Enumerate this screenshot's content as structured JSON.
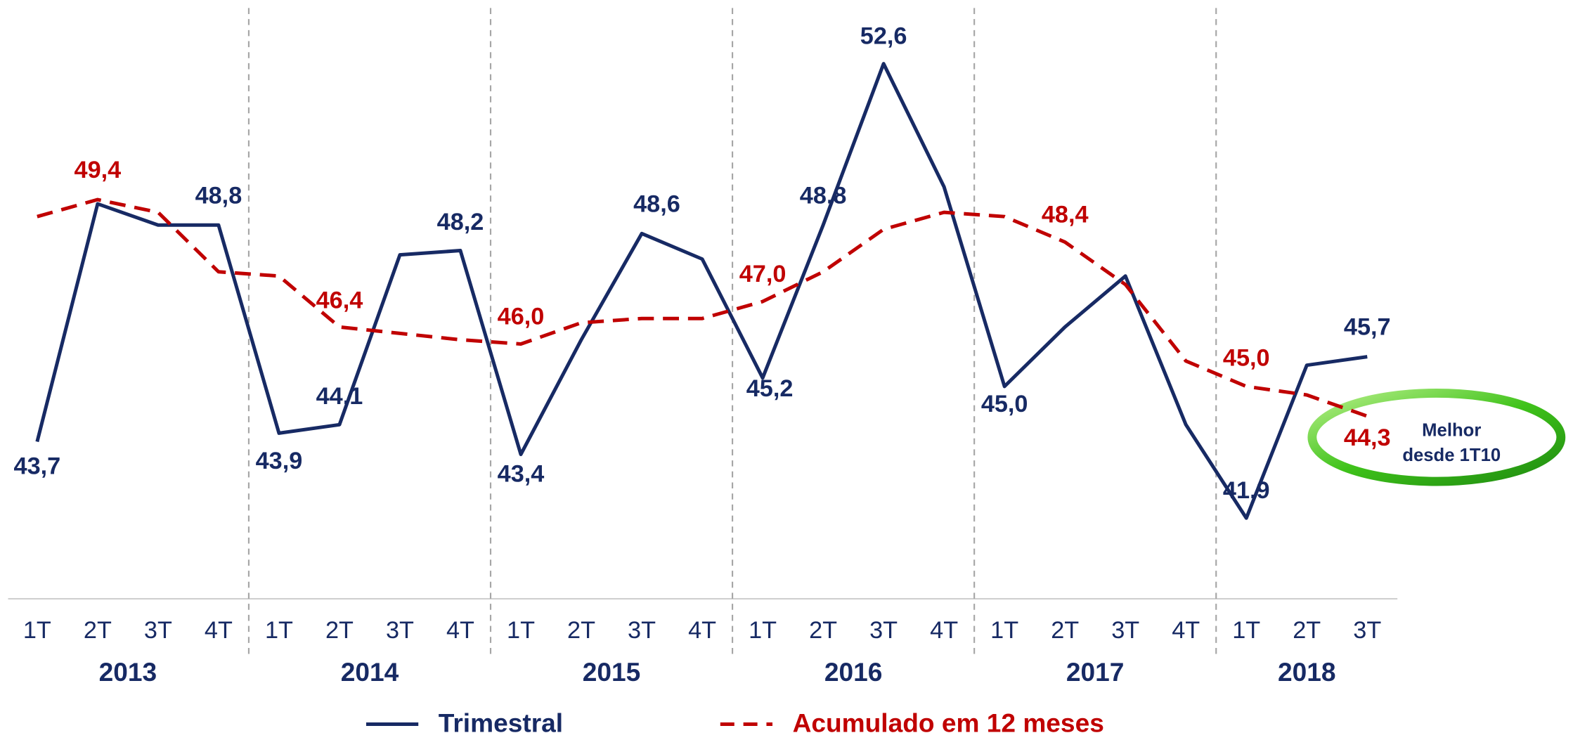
{
  "chart_data": {
    "type": "line",
    "groups": [
      {
        "name": "2013",
        "categories": [
          "1T",
          "2T",
          "3T",
          "4T"
        ]
      },
      {
        "name": "2014",
        "categories": [
          "1T",
          "2T",
          "3T",
          "4T"
        ]
      },
      {
        "name": "2015",
        "categories": [
          "1T",
          "2T",
          "3T",
          "4T"
        ]
      },
      {
        "name": "2016",
        "categories": [
          "1T",
          "2T",
          "3T",
          "4T"
        ]
      },
      {
        "name": "2017",
        "categories": [
          "1T",
          "2T",
          "3T",
          "4T"
        ]
      },
      {
        "name": "2018",
        "categories": [
          "1T",
          "2T",
          "3T"
        ]
      }
    ],
    "ylim": [
      40,
      54.1
    ],
    "series": [
      {
        "name": "Trimestral",
        "color": "#172a64",
        "dash": false,
        "values": [
          43.7,
          49.3,
          48.8,
          48.8,
          43.9,
          44.1,
          48.1,
          48.2,
          43.4,
          46.1,
          48.6,
          48.0,
          45.2,
          48.8,
          52.6,
          49.7,
          45.0,
          46.4,
          47.6,
          44.1,
          41.9,
          45.5,
          45.7
        ],
        "value_labels": [
          "43,7",
          null,
          null,
          "48,8",
          "43,9",
          "44,1",
          null,
          "48,2",
          "43,4",
          null,
          "48,6",
          null,
          "45,2",
          "48,8",
          "52,6",
          null,
          "45,0",
          null,
          null,
          null,
          "41,9",
          null,
          "45,7"
        ]
      },
      {
        "name": "Acumulado em 12 meses",
        "color": "#c00000",
        "dash": true,
        "values": [
          49.0,
          49.4,
          49.1,
          47.7,
          47.6,
          46.4,
          46.25,
          46.1,
          46.0,
          46.5,
          46.6,
          46.6,
          47.0,
          47.7,
          48.7,
          49.1,
          49.0,
          48.4,
          47.4,
          45.6,
          45.0,
          44.8,
          44.3
        ],
        "value_labels": [
          null,
          "49,4",
          null,
          null,
          null,
          "46,4",
          null,
          null,
          "46,0",
          null,
          null,
          null,
          "47,0",
          null,
          null,
          null,
          null,
          "48,4",
          null,
          null,
          "45,0",
          null,
          "44,3"
        ]
      }
    ],
    "annotation": [
      "Melhor",
      "desde 1T10"
    ]
  }
}
